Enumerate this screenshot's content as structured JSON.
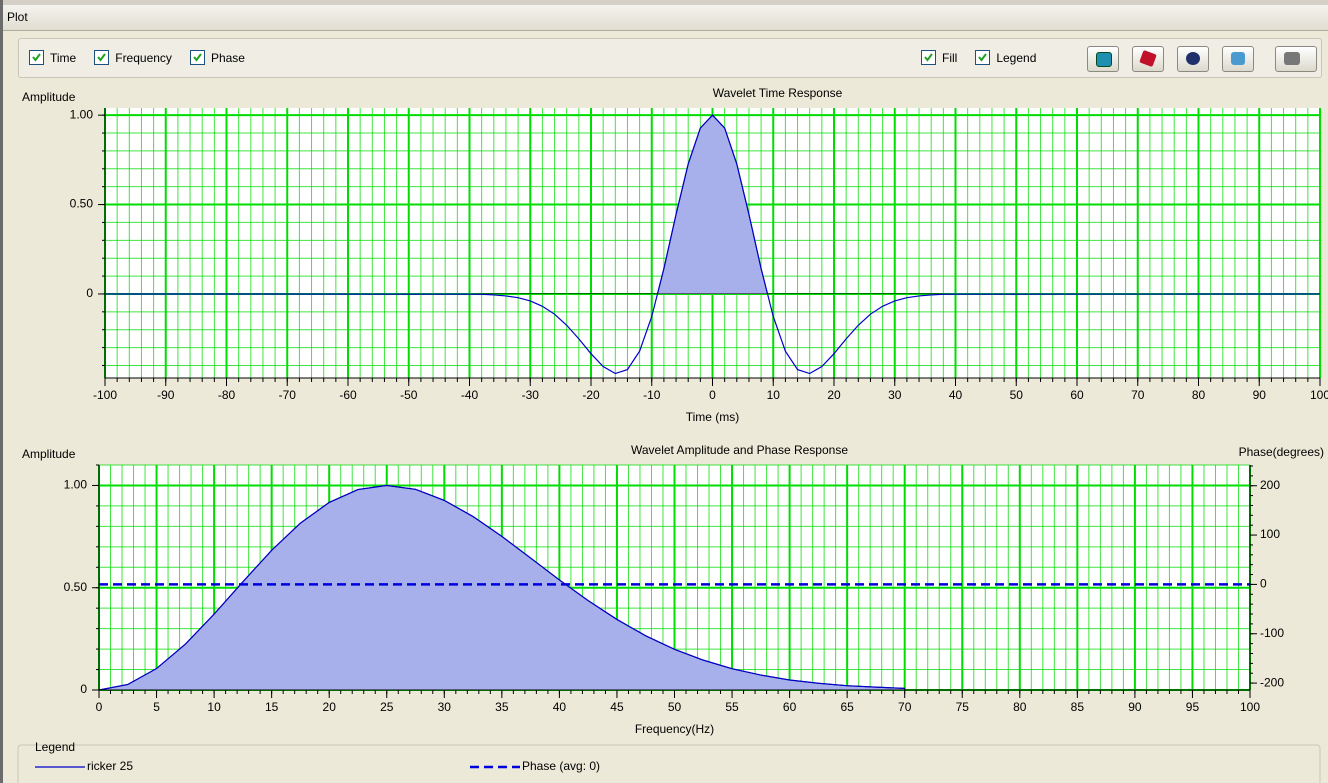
{
  "window": {
    "title": "Plot"
  },
  "toolbar": {
    "left": [
      {
        "label": "Time",
        "checked": true
      },
      {
        "label": "Frequency",
        "checked": true
      },
      {
        "label": "Phase",
        "checked": true
      }
    ],
    "right": [
      {
        "label": "Fill",
        "checked": true
      },
      {
        "label": "Legend",
        "checked": true
      }
    ]
  },
  "chart_data": [
    {
      "type": "line",
      "title": "Wavelet Time Response",
      "ylabel": "Amplitude",
      "xlabel": "Time (ms)",
      "x": [
        -100,
        -40,
        -38,
        -36,
        -34,
        -32,
        -30,
        -28,
        -26,
        -24,
        -22,
        -20,
        -18,
        -16,
        -14,
        -12,
        -10,
        -8,
        -6,
        -4,
        -2,
        0,
        2,
        4,
        6,
        8,
        10,
        12,
        14,
        16,
        18,
        20,
        22,
        24,
        26,
        28,
        30,
        32,
        34,
        36,
        38,
        40,
        100
      ],
      "series": [
        {
          "color": "#0000cc",
          "values": [
            0,
            -0.001,
            -0.002,
            -0.005,
            -0.011,
            -0.021,
            -0.039,
            -0.069,
            -0.113,
            -0.175,
            -0.251,
            -0.334,
            -0.406,
            -0.445,
            -0.423,
            -0.32,
            -0.126,
            0.142,
            0.445,
            0.727,
            0.928,
            1,
            0.928,
            0.727,
            0.445,
            0.142,
            -0.126,
            -0.32,
            -0.423,
            -0.445,
            -0.406,
            -0.334,
            -0.251,
            -0.175,
            -0.113,
            -0.069,
            -0.039,
            -0.021,
            -0.011,
            -0.005,
            -0.002,
            -0.001,
            0
          ]
        }
      ],
      "fill": true,
      "fill_color": "#a8b0ec",
      "grid": true,
      "grid_color": "#00dd00",
      "xlim": [
        -100,
        100
      ],
      "ylim": [
        -0.47,
        1.04
      ],
      "xticks": [
        -100,
        -90,
        -80,
        -70,
        -60,
        -50,
        -40,
        -30,
        -20,
        -10,
        0,
        10,
        20,
        30,
        40,
        50,
        60,
        70,
        80,
        90,
        100
      ],
      "yticks": [
        0,
        {
          "value": 0.5,
          "label": "0.50"
        },
        {
          "value": 1,
          "label": "1.00"
        }
      ]
    },
    {
      "type": "line",
      "title": "Wavelet Amplitude and Phase Response",
      "ylabel": "Amplitude",
      "y2label": "Phase(degrees)",
      "xlabel": "Frequency(Hz)",
      "x": [
        0,
        2.5,
        5,
        7.5,
        10,
        12.5,
        15,
        17.5,
        20,
        22.5,
        25,
        27.5,
        30,
        32.5,
        35,
        37.5,
        40,
        42.5,
        45,
        47.5,
        50,
        52.5,
        55,
        57.5,
        60,
        62.5,
        65,
        67.5,
        70
      ],
      "series": [
        {
          "name": "ricker 25",
          "color": "#0000cc",
          "values": [
            0,
            0.027,
            0.105,
            0.224,
            0.371,
            0.529,
            0.683,
            0.816,
            0.917,
            0.98,
            1,
            0.981,
            0.927,
            0.848,
            0.751,
            0.645,
            0.538,
            0.437,
            0.345,
            0.265,
            0.199,
            0.146,
            0.104,
            0.073,
            0.049,
            0.033,
            0.021,
            0.014,
            0.008
          ]
        },
        {
          "name": "Phase (avg: 0)",
          "color": "#0000dd",
          "axis": "y2",
          "dash": true,
          "x": [
            0,
            100
          ],
          "values": [
            0,
            0
          ]
        }
      ],
      "fill": true,
      "fill_color": "#a8b0ec",
      "grid": true,
      "grid_color": "#00dd00",
      "xlim": [
        0,
        100
      ],
      "ylim": [
        0,
        1.1
      ],
      "y2lim": [
        -214,
        242
      ],
      "xticks": [
        0,
        5,
        10,
        15,
        20,
        25,
        30,
        35,
        40,
        45,
        50,
        55,
        60,
        65,
        70,
        75,
        80,
        85,
        90,
        95,
        100
      ],
      "yticks": [
        0,
        {
          "value": 0.5,
          "label": "0.50"
        },
        {
          "value": 1,
          "label": "1.00"
        }
      ],
      "y2ticks": [
        -200,
        -100,
        0,
        100,
        200
      ]
    }
  ],
  "legend": {
    "title": "Legend"
  }
}
